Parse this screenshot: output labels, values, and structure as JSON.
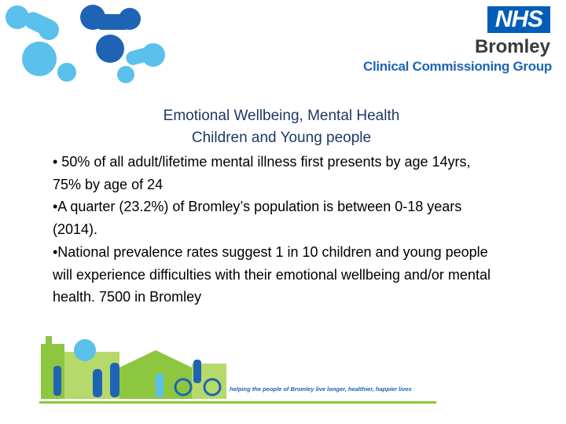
{
  "header": {
    "nhs": "NHS",
    "org": "Bromley",
    "group": "Clinical Commissioning Group"
  },
  "title": [
    "Emotional Wellbeing, Mental Health",
    "Children and Young people"
  ],
  "bullets": [
    "• 50% of all adult/lifetime mental illness first presents by age 14yrs, 75% by age of 24",
    "•A quarter (23.2%) of Bromley’s population is between 0-18 years (2014).",
    "•National prevalence rates suggest 1 in 10 children and young people will experience difficulties with their emotional wellbeing and/or mental health. 7500 in Bromley"
  ],
  "footer": {
    "tagline": "helping the people of Bromley live longer, healthier, happier lives"
  }
}
